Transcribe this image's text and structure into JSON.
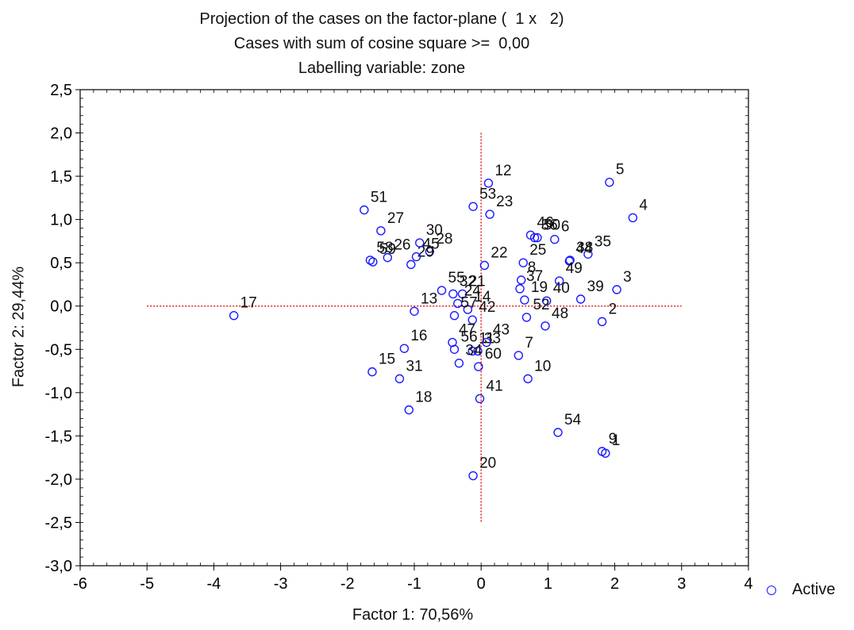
{
  "chart_data": {
    "type": "scatter",
    "title_lines": [
      "Projection of the cases on the factor-plane (  1 x   2)",
      "Cases with sum of cosine square >=  0,00",
      "Labelling variable: zone"
    ],
    "xlabel": "Factor 1: 70,56%",
    "ylabel": "Factor 2: 29,44%",
    "xlim": [
      -6,
      4
    ],
    "ylim": [
      -3,
      2.5
    ],
    "xticks": [
      -6,
      -5,
      -4,
      -3,
      -2,
      -1,
      0,
      1,
      2,
      3,
      4
    ],
    "xtick_labels": [
      "-6",
      "-5",
      "-4",
      "-3",
      "-2",
      "-1",
      "0",
      "1",
      "2",
      "3",
      "4"
    ],
    "yticks": [
      2.5,
      2.0,
      1.5,
      1.0,
      0.5,
      0.0,
      -0.5,
      -1.0,
      -1.5,
      -2.0,
      -2.5,
      -3.0
    ],
    "ytick_labels": [
      "2,5",
      "2,0",
      "1,5",
      "1,0",
      "0,5",
      "0,0",
      "-0,5",
      "-1,0",
      "-1,5",
      "-2,0",
      "-2,5",
      "-3,0"
    ],
    "reference_lines": {
      "horizontal_y": 0,
      "horizontal_x_range": [
        -5,
        3
      ],
      "vertical_x": 0,
      "vertical_y_range": [
        -2.5,
        2
      ]
    },
    "grid": false,
    "legend": {
      "position": "bottom-right",
      "entries": [
        "Active"
      ]
    },
    "series": [
      {
        "name": "Active",
        "color": "#1a1aff",
        "marker": "open-circle",
        "points": [
          {
            "label": "1",
            "x": 1.86,
            "y": -1.7
          },
          {
            "label": "2",
            "x": 1.81,
            "y": -0.18
          },
          {
            "label": "3",
            "x": 2.03,
            "y": 0.19
          },
          {
            "label": "4",
            "x": 2.27,
            "y": 1.02
          },
          {
            "label": "5",
            "x": 1.92,
            "y": 1.43
          },
          {
            "label": "6",
            "x": 1.1,
            "y": 0.77
          },
          {
            "label": "7",
            "x": 0.56,
            "y": -0.57
          },
          {
            "label": "8",
            "x": 0.6,
            "y": 0.3
          },
          {
            "label": "9",
            "x": 1.81,
            "y": -1.68
          },
          {
            "label": "10",
            "x": 0.7,
            "y": -0.84
          },
          {
            "label": "11",
            "x": -0.13,
            "y": -0.52
          },
          {
            "label": "12",
            "x": 0.11,
            "y": 1.42
          },
          {
            "label": "13",
            "x": -1.0,
            "y": -0.06
          },
          {
            "label": "14",
            "x": -0.2,
            "y": -0.04
          },
          {
            "label": "15",
            "x": -1.63,
            "y": -0.76
          },
          {
            "label": "16",
            "x": -1.15,
            "y": -0.49
          },
          {
            "label": "17",
            "x": -3.7,
            "y": -0.11
          },
          {
            "label": "18",
            "x": -1.08,
            "y": -1.2
          },
          {
            "label": "19",
            "x": 0.65,
            "y": 0.07
          },
          {
            "label": "20",
            "x": -0.12,
            "y": -1.96
          },
          {
            "label": "21",
            "x": -0.28,
            "y": 0.14
          },
          {
            "label": "22",
            "x": 0.05,
            "y": 0.47
          },
          {
            "label": "23",
            "x": 0.13,
            "y": 1.06
          },
          {
            "label": "24",
            "x": -0.35,
            "y": 0.03
          },
          {
            "label": "25",
            "x": 0.63,
            "y": 0.5
          },
          {
            "label": "26",
            "x": -1.4,
            "y": 0.56
          },
          {
            "label": "27",
            "x": -1.5,
            "y": 0.87
          },
          {
            "label": "28",
            "x": -0.77,
            "y": 0.63
          },
          {
            "label": "29",
            "x": -1.05,
            "y": 0.48
          },
          {
            "label": "30",
            "x": -0.92,
            "y": 0.73
          },
          {
            "label": "31",
            "x": -1.22,
            "y": -0.84
          },
          {
            "label": "32",
            "x": -0.42,
            "y": 0.14
          },
          {
            "label": "33",
            "x": -0.05,
            "y": -0.52
          },
          {
            "label": "34",
            "x": -0.33,
            "y": -0.66
          },
          {
            "label": "35",
            "x": 1.6,
            "y": 0.6
          },
          {
            "label": "36",
            "x": 0.8,
            "y": 0.79
          },
          {
            "label": "37",
            "x": 0.58,
            "y": 0.2
          },
          {
            "label": "38",
            "x": 1.33,
            "y": 0.53
          },
          {
            "label": "39",
            "x": 1.49,
            "y": 0.08
          },
          {
            "label": "40",
            "x": 0.98,
            "y": 0.06
          },
          {
            "label": "41",
            "x": -0.02,
            "y": -1.07
          },
          {
            "label": "42",
            "x": -0.13,
            "y": -0.16
          },
          {
            "label": "43",
            "x": 0.08,
            "y": -0.42
          },
          {
            "label": "44",
            "x": 1.32,
            "y": 0.52
          },
          {
            "label": "45",
            "x": -0.97,
            "y": 0.57
          },
          {
            "label": "46",
            "x": 0.74,
            "y": 0.82
          },
          {
            "label": "47",
            "x": -0.43,
            "y": -0.42
          },
          {
            "label": "48",
            "x": 0.96,
            "y": -0.23
          },
          {
            "label": "49",
            "x": 1.17,
            "y": 0.29
          },
          {
            "label": "50",
            "x": 0.84,
            "y": 0.79
          },
          {
            "label": "51",
            "x": -1.75,
            "y": 1.11
          },
          {
            "label": "52",
            "x": 0.68,
            "y": -0.13
          },
          {
            "label": "53",
            "x": -0.12,
            "y": 1.15
          },
          {
            "label": "54",
            "x": 1.15,
            "y": -1.46
          },
          {
            "label": "55",
            "x": -0.59,
            "y": 0.18
          },
          {
            "label": "56",
            "x": -0.4,
            "y": -0.5
          },
          {
            "label": "57",
            "x": -0.4,
            "y": -0.11
          },
          {
            "label": "58",
            "x": -1.66,
            "y": 0.53
          },
          {
            "label": "59",
            "x": -1.62,
            "y": 0.51
          },
          {
            "label": "60",
            "x": -0.04,
            "y": -0.7
          }
        ]
      }
    ]
  }
}
